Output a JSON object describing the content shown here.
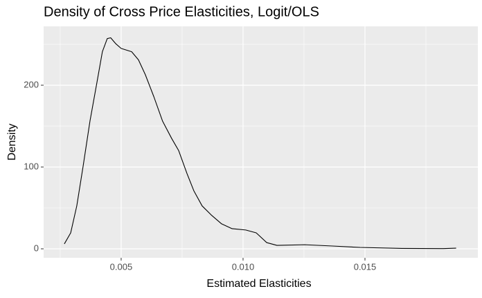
{
  "chart_data": {
    "type": "line",
    "title": "Density of Cross Price Elasticities, Logit/OLS",
    "x_label": "Estimated Elasticities",
    "y_label": "Density",
    "x": [
      0.00267,
      0.00293,
      0.00318,
      0.00344,
      0.00372,
      0.00401,
      0.00423,
      0.00443,
      0.00457,
      0.00477,
      0.005,
      0.00543,
      0.00571,
      0.00599,
      0.00634,
      0.0067,
      0.00707,
      0.00736,
      0.0077,
      0.00798,
      0.00832,
      0.00869,
      0.00912,
      0.00955,
      0.01011,
      0.01054,
      0.01097,
      0.01139,
      0.01253,
      0.01367,
      0.0148,
      0.01651,
      0.01821,
      0.01874
    ],
    "series": [
      {
        "color": "#000000",
        "values": [
          6,
          19.5,
          52.5,
          101,
          156,
          204,
          241,
          257,
          258,
          251,
          245,
          241,
          231,
          213,
          186,
          156,
          135,
          120,
          92,
          71,
          52.5,
          41.5,
          30.5,
          24.6,
          23,
          19.5,
          7.6,
          4.2,
          5,
          3.4,
          1.7,
          0.5,
          0.3,
          0.8
        ]
      }
    ],
    "xlim": [
      0.00182,
      0.01963
    ],
    "ylim": [
      -11,
      272
    ],
    "xticks": [
      0.005,
      {
        "value": 0.01,
        "label": "0.010"
      },
      0.015
    ],
    "yticks": [
      0,
      100,
      200
    ],
    "grid": true,
    "background": "#ebebeb"
  }
}
